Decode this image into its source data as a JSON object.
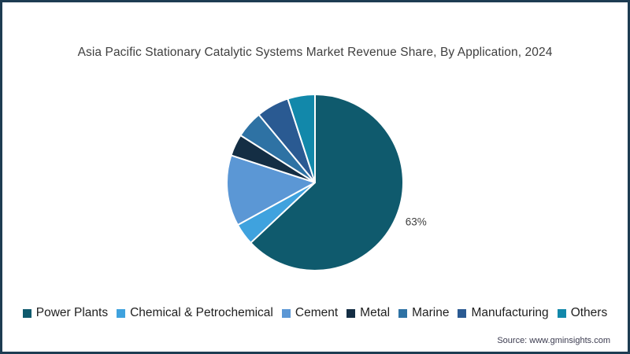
{
  "title": "Asia Pacific Stationary Catalytic Systems Market Revenue Share, By Application, 2024",
  "source": "Source: www.gminsights.com",
  "page": {
    "border_color": "#1d3c52",
    "background": "#ffffff"
  },
  "chart_data": {
    "type": "pie",
    "title": "Asia Pacific Stationary Catalytic Systems Market Revenue Share, By Application, 2024",
    "unit": "%",
    "start_angle_deg": 0,
    "direction": "clockwise",
    "legend_position": "bottom",
    "separator_color": "#ffffff",
    "slices": [
      {
        "label": "Power Plants",
        "value": 63,
        "color": "#0f5a6d",
        "data_label": "63%"
      },
      {
        "label": "Chemical & Petrochemical",
        "value": 4,
        "color": "#3fa2de",
        "data_label": ""
      },
      {
        "label": "Cement",
        "value": 13,
        "color": "#5b97d5",
        "data_label": ""
      },
      {
        "label": "Metal",
        "value": 4,
        "color": "#142e44",
        "data_label": ""
      },
      {
        "label": "Marine",
        "value": 5,
        "color": "#2e72a4",
        "data_label": ""
      },
      {
        "label": "Manufacturing",
        "value": 6,
        "color": "#2a5a92",
        "data_label": ""
      },
      {
        "label": "Others",
        "value": 5,
        "color": "#1288aa",
        "data_label": ""
      }
    ]
  }
}
